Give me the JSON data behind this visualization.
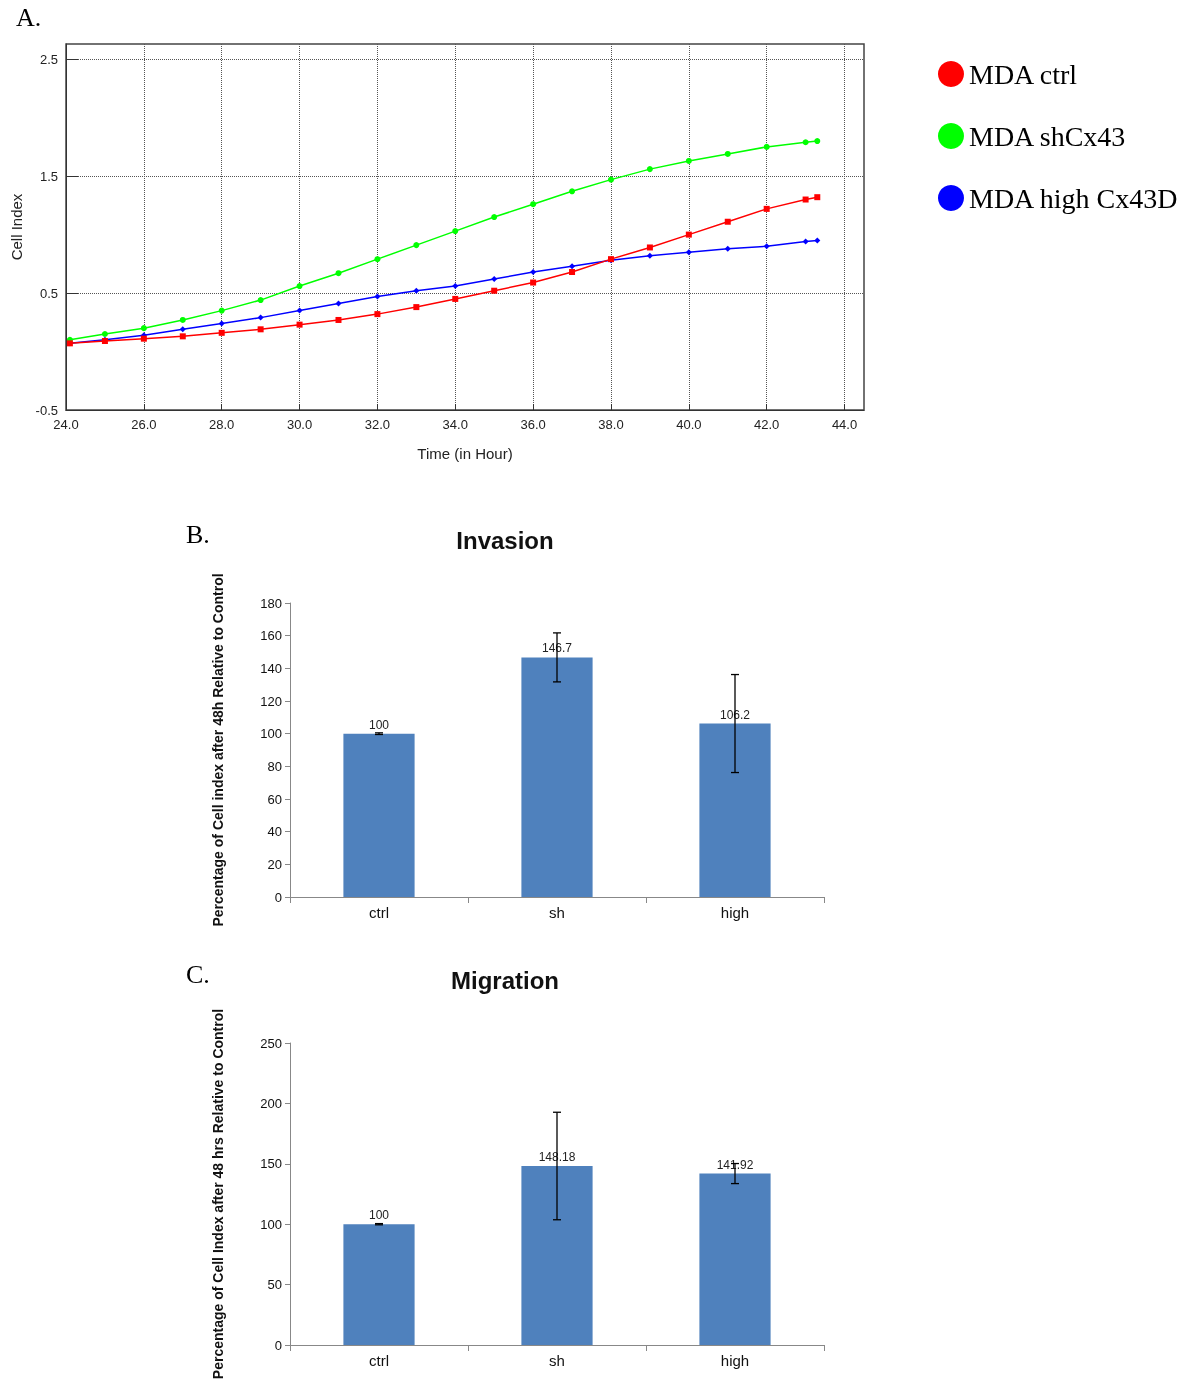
{
  "chart_data": [
    {
      "type": "line",
      "xlabel": "Time (in Hour)",
      "ylabel": "Cell Index",
      "annotations": [
        "A."
      ],
      "x": [
        24.1,
        25,
        26,
        27,
        28,
        29,
        30,
        31,
        32,
        33,
        34,
        35,
        36,
        37,
        38,
        39,
        40,
        41,
        42,
        43,
        43.3
      ],
      "series": [
        {
          "name": "MDA ctrl",
          "color": "#ff0000",
          "marker": "square",
          "values": [
            0.07,
            0.09,
            0.11,
            0.13,
            0.16,
            0.19,
            0.23,
            0.27,
            0.32,
            0.38,
            0.45,
            0.52,
            0.59,
            0.68,
            0.79,
            0.89,
            1.0,
            1.11,
            1.22,
            1.3,
            1.32
          ]
        },
        {
          "name": "MDA shCx43",
          "color": "#00ff00",
          "marker": "circle",
          "values": [
            0.1,
            0.15,
            0.2,
            0.27,
            0.35,
            0.44,
            0.56,
            0.67,
            0.79,
            0.91,
            1.03,
            1.15,
            1.26,
            1.37,
            1.47,
            1.56,
            1.63,
            1.69,
            1.75,
            1.79,
            1.8
          ]
        },
        {
          "name": "MDA high Cx43D",
          "color": "#0000ff",
          "marker": "diamond",
          "values": [
            0.07,
            0.1,
            0.14,
            0.19,
            0.24,
            0.29,
            0.35,
            0.41,
            0.47,
            0.52,
            0.56,
            0.62,
            0.68,
            0.73,
            0.78,
            0.82,
            0.85,
            0.88,
            0.9,
            0.94,
            0.95
          ]
        }
      ],
      "xlim": [
        24,
        44.5
      ],
      "xticks": [
        {
          "value": 24,
          "label": "24.0"
        },
        {
          "value": 26,
          "label": "26.0"
        },
        {
          "value": 28,
          "label": "28.0"
        },
        {
          "value": 30,
          "label": "30.0"
        },
        {
          "value": 32,
          "label": "32.0"
        },
        {
          "value": 34,
          "label": "34.0"
        },
        {
          "value": 36,
          "label": "36.0"
        },
        {
          "value": 38,
          "label": "38.0"
        },
        {
          "value": 40,
          "label": "40.0"
        },
        {
          "value": 42,
          "label": "42.0"
        },
        {
          "value": 44,
          "label": "44.0"
        }
      ],
      "ylim": [
        -0.5,
        2.63
      ],
      "yticks": [
        -0.5,
        0.5,
        1.5,
        2.5
      ],
      "grid": true,
      "legend": "right",
      "line_style": "solid"
    },
    {
      "type": "bar",
      "title": "Invasion",
      "ylabel": "Percentage of Cell index after 48h Relative to Control",
      "annotations": [
        "B."
      ],
      "categories": [
        "ctrl",
        "sh",
        "high"
      ],
      "values": [
        100,
        146.7,
        106.2
      ],
      "errors": [
        0.5,
        15,
        30
      ],
      "color": "#4f81bd",
      "ylim": [
        0,
        180
      ],
      "yticks": [
        0,
        20,
        40,
        60,
        80,
        100,
        120,
        140,
        160,
        180
      ],
      "data_labels": true,
      "grid": false
    },
    {
      "type": "bar",
      "title": "Migration",
      "ylabel": "Percentage of Cell Index after 48 hrs Relative to Control",
      "annotations": [
        "C."
      ],
      "categories": [
        "ctrl",
        "sh",
        "high"
      ],
      "values": [
        100,
        148.18,
        141.92
      ],
      "errors": [
        0.5,
        44.5,
        8.3
      ],
      "color": "#4f81bd",
      "ylim": [
        0,
        250
      ],
      "yticks": [
        0,
        50,
        100,
        150,
        200,
        250
      ],
      "data_labels": true,
      "grid": false
    }
  ]
}
